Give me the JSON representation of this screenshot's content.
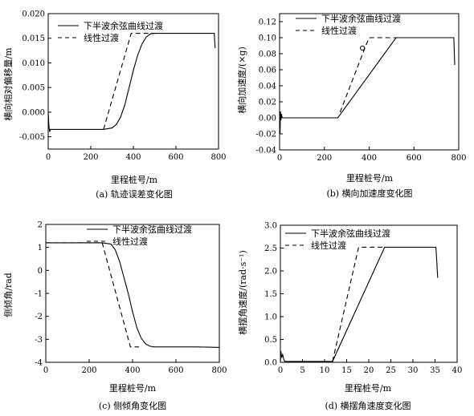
{
  "chart_data": [
    {
      "id": "a",
      "type": "line",
      "caption": "(a) 轨迹误差变化图",
      "xlabel": "里程桩号/m",
      "ylabel": "横向相对偏移量/m",
      "xlim": [
        0,
        800
      ],
      "ylim": [
        -0.0075,
        0.02
      ],
      "xticks": [
        0,
        200,
        400,
        600,
        800
      ],
      "yticks": [
        -0.005,
        0.0,
        0.005,
        0.01,
        0.015,
        0.02
      ],
      "ytick_labels": [
        "-0.005",
        "0.000",
        "0.005",
        "0.010",
        "0.015",
        "0.020"
      ],
      "legend_position": "top-left",
      "series": [
        {
          "name": "下半波余弦曲线过渡",
          "style": "solid",
          "x": [
            0,
            3,
            6,
            10,
            20,
            100,
            200,
            260,
            300,
            320,
            340,
            360,
            380,
            400,
            420,
            440,
            460,
            480,
            500,
            520,
            600,
            700,
            780,
            782,
            784
          ],
          "y": [
            0.0,
            -0.0025,
            -0.004,
            -0.0035,
            -0.0035,
            -0.0035,
            -0.0035,
            -0.0035,
            -0.0032,
            -0.0025,
            -0.001,
            0.0015,
            0.005,
            0.0085,
            0.0115,
            0.0138,
            0.0152,
            0.0159,
            0.016,
            0.016,
            0.016,
            0.016,
            0.016,
            0.0145,
            0.013
          ]
        },
        {
          "name": "线性过渡",
          "style": "dashed",
          "x": [
            260,
            390,
            520
          ],
          "y": [
            -0.0035,
            0.016,
            0.016
          ]
        }
      ]
    },
    {
      "id": "b",
      "type": "line",
      "caption": "(b) 横向加速度变化图",
      "xlabel": "里程桩号/m",
      "ylabel": "横向加速度/(×g)",
      "xlim": [
        0,
        800
      ],
      "ylim": [
        -0.04,
        0.13
      ],
      "xticks": [
        0,
        200,
        400,
        600,
        800
      ],
      "yticks": [
        -0.04,
        -0.02,
        0.0,
        0.02,
        0.04,
        0.06,
        0.08,
        0.1,
        0.12
      ],
      "ytick_labels": [
        "-0.04",
        "-0.02",
        "0.00",
        "0.02",
        "0.04",
        "0.06",
        "0.08",
        "0.10",
        "0.12"
      ],
      "legend_position": "top-right",
      "series": [
        {
          "name": "下半波余弦曲线过渡",
          "style": "solid",
          "x": [
            0,
            2,
            4,
            6,
            8,
            12,
            20,
            100,
            200,
            260,
            520,
            600,
            700,
            778,
            780,
            782
          ],
          "y": [
            0.0,
            -0.02,
            0.008,
            -0.003,
            0.005,
            0.0,
            0.0,
            0.0,
            0.0,
            0.0,
            0.1,
            0.1,
            0.1,
            0.1,
            0.085,
            0.066
          ]
        },
        {
          "name": "线性过渡",
          "style": "dashed",
          "x": [
            270,
            385,
            400,
            520
          ],
          "y": [
            0.007,
            0.09,
            0.1,
            0.1
          ]
        }
      ],
      "marker": {
        "x": 370,
        "y": 0.087
      }
    },
    {
      "id": "c",
      "type": "line",
      "caption": "(c) 侧倾角变化图",
      "xlabel": "里程桩号/m",
      "ylabel": "侧倾角/rad",
      "xlim": [
        0,
        800
      ],
      "ylim": [
        -4,
        2
      ],
      "xticks": [
        0,
        200,
        400,
        600,
        800
      ],
      "yticks": [
        -4,
        -3,
        -2,
        -1,
        0,
        1,
        2
      ],
      "ytick_labels": [
        "-4",
        "-3",
        "-2",
        "-1",
        "0",
        "1",
        "2"
      ],
      "legend_position": "top-right",
      "series": [
        {
          "name": "下半波余弦曲线过渡",
          "style": "solid",
          "x": [
            0,
            200,
            260,
            300,
            320,
            340,
            360,
            380,
            400,
            420,
            440,
            460,
            480,
            500,
            520,
            600,
            700,
            800
          ],
          "y": [
            1.2,
            1.2,
            1.2,
            1.15,
            0.9,
            0.4,
            -0.3,
            -1.0,
            -1.8,
            -2.5,
            -2.95,
            -3.2,
            -3.3,
            -3.33,
            -3.33,
            -3.33,
            -3.33,
            -3.35
          ]
        },
        {
          "name": "线性过渡",
          "style": "dashed",
          "x": [
            0,
            260,
            390,
            430
          ],
          "y": [
            1.2,
            1.2,
            -3.33,
            -3.33
          ]
        }
      ]
    },
    {
      "id": "d",
      "type": "line",
      "caption": "(d) 横摆角速度变化图",
      "xlabel": "里程桩号/m",
      "ylabel": "横摆角速度/(rad·s⁻¹)",
      "xlim": [
        0,
        40
      ],
      "ylim": [
        0,
        3
      ],
      "xticks": [
        0,
        5,
        10,
        15,
        20,
        25,
        30,
        35,
        40
      ],
      "yticks": [
        0,
        0.5,
        1,
        1.5,
        2,
        2.5,
        3
      ],
      "ytick_labels": [
        "0.0",
        "0.5",
        "1.0",
        "1.5",
        "2.0",
        "2.5",
        "3.0"
      ],
      "legend_position": "top-right",
      "series": [
        {
          "name": "下半波余弦曲线过渡",
          "style": "solid",
          "x": [
            0,
            0.1,
            0.3,
            0.5,
            0.8,
            1,
            11.8,
            23.6,
            30,
            35.2,
            35.4,
            35.6
          ],
          "y": [
            0.0,
            0.25,
            0.1,
            0.17,
            0.05,
            0.02,
            0.02,
            2.52,
            2.52,
            2.52,
            2.2,
            1.85
          ]
        },
        {
          "name": "线性过渡",
          "style": "dashed",
          "x": [
            11.8,
            17.7,
            23.6
          ],
          "y": [
            0.02,
            2.52,
            2.52
          ]
        }
      ]
    }
  ]
}
